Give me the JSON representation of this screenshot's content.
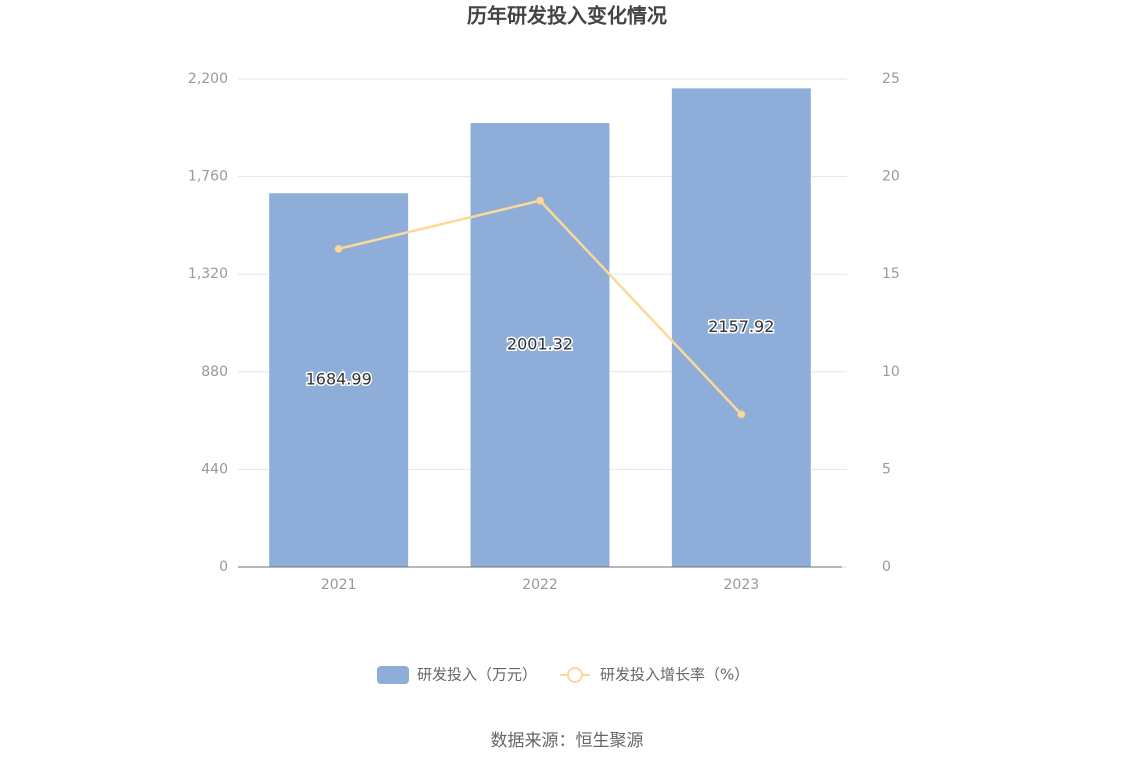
{
  "chart_data": {
    "type": "bar-line",
    "title": "历年研发投入变化情况",
    "categories": [
      "2021",
      "2022",
      "2023"
    ],
    "series": [
      {
        "name": "研发投入（万元）",
        "type": "bar",
        "color": "#8eadd9",
        "values": [
          1684.99,
          2001.32,
          2157.92
        ]
      },
      {
        "name": "研发投入增长率（%）",
        "type": "line",
        "axis": "y2",
        "color": "#fad999",
        "values": [
          16.3,
          18.77,
          7.82
        ]
      }
    ],
    "ylim": [
      0,
      2200
    ],
    "yticks": [
      0,
      440,
      880,
      {
        "value": 1320,
        "label": "1,320"
      },
      {
        "value": 1760,
        "label": "1,760"
      },
      {
        "value": 2200,
        "label": "2,200"
      }
    ],
    "y2lim": [
      0,
      25
    ],
    "y2ticks": [
      0,
      5,
      10,
      15,
      20,
      25
    ],
    "grid": true,
    "legend": "bottom",
    "source": "数据来源：恒生聚源"
  }
}
